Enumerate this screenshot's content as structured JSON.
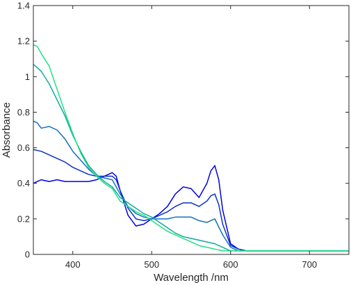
{
  "chart_data": {
    "type": "line",
    "xlabel": "Wavelength /nm",
    "ylabel": "Absorbance",
    "xlim": [
      350,
      750
    ],
    "ylim": [
      0,
      1.4
    ],
    "xticks": [
      "400",
      "500",
      "600",
      "700"
    ],
    "xtick_values": [
      400,
      500,
      600,
      700
    ],
    "yticks": [
      "0",
      "0.2",
      "0.4",
      "0.6",
      "0.8",
      "1",
      "1.2",
      "1.4"
    ],
    "ytick_values": [
      0,
      0.2,
      0.4,
      0.6,
      0.8,
      1.0,
      1.2,
      1.4
    ],
    "grid": false,
    "legend": false,
    "series": [
      {
        "color": "#0000e0",
        "x": [
          350,
          360,
          370,
          380,
          390,
          400,
          410,
          420,
          430,
          440,
          445,
          450,
          455,
          460,
          470,
          480,
          490,
          500,
          510,
          520,
          530,
          540,
          550,
          560,
          570,
          575,
          580,
          585,
          590,
          600,
          610,
          620,
          630,
          650,
          700,
          750
        ],
        "y": [
          0.4,
          0.42,
          0.41,
          0.42,
          0.41,
          0.41,
          0.41,
          0.41,
          0.42,
          0.44,
          0.45,
          0.46,
          0.44,
          0.36,
          0.22,
          0.16,
          0.17,
          0.2,
          0.23,
          0.27,
          0.34,
          0.38,
          0.37,
          0.32,
          0.4,
          0.47,
          0.5,
          0.42,
          0.25,
          0.06,
          0.03,
          0.02,
          0.02,
          0.02,
          0.02,
          0.02
        ]
      },
      {
        "color": "#0a30c8",
        "x": [
          350,
          360,
          370,
          380,
          390,
          400,
          410,
          420,
          430,
          440,
          450,
          455,
          460,
          470,
          480,
          490,
          500,
          510,
          520,
          530,
          540,
          550,
          560,
          570,
          575,
          580,
          585,
          590,
          600,
          610,
          620,
          630,
          650,
          700,
          750
        ],
        "y": [
          0.59,
          0.58,
          0.56,
          0.54,
          0.52,
          0.49,
          0.47,
          0.45,
          0.44,
          0.44,
          0.44,
          0.42,
          0.36,
          0.26,
          0.2,
          0.19,
          0.2,
          0.22,
          0.24,
          0.27,
          0.29,
          0.29,
          0.27,
          0.3,
          0.33,
          0.34,
          0.28,
          0.17,
          0.05,
          0.03,
          0.02,
          0.02,
          0.02,
          0.02,
          0.02
        ]
      },
      {
        "color": "#1470c0",
        "x": [
          350,
          355,
          360,
          370,
          380,
          390,
          400,
          410,
          420,
          430,
          440,
          450,
          460,
          470,
          480,
          490,
          500,
          510,
          520,
          530,
          540,
          550,
          560,
          570,
          580,
          590,
          600,
          610,
          620,
          630,
          650,
          700,
          750
        ],
        "y": [
          0.75,
          0.74,
          0.71,
          0.72,
          0.7,
          0.65,
          0.58,
          0.53,
          0.48,
          0.44,
          0.43,
          0.42,
          0.34,
          0.27,
          0.23,
          0.21,
          0.2,
          0.2,
          0.2,
          0.21,
          0.21,
          0.21,
          0.19,
          0.18,
          0.2,
          0.11,
          0.04,
          0.02,
          0.02,
          0.02,
          0.02,
          0.02,
          0.02
        ]
      },
      {
        "color": "#10a8a0",
        "x": [
          350,
          360,
          370,
          380,
          390,
          400,
          410,
          420,
          430,
          440,
          450,
          460,
          470,
          480,
          490,
          500,
          510,
          520,
          530,
          540,
          550,
          560,
          570,
          580,
          590,
          600,
          610,
          620,
          630,
          650,
          700,
          750
        ],
        "y": [
          1.07,
          1.03,
          0.96,
          0.87,
          0.78,
          0.67,
          0.58,
          0.5,
          0.45,
          0.41,
          0.38,
          0.32,
          0.29,
          0.26,
          0.23,
          0.21,
          0.18,
          0.15,
          0.12,
          0.1,
          0.09,
          0.08,
          0.07,
          0.06,
          0.04,
          0.02,
          0.02,
          0.02,
          0.02,
          0.02,
          0.02,
          0.02
        ]
      },
      {
        "color": "#20e080",
        "x": [
          350,
          355,
          360,
          370,
          380,
          390,
          400,
          410,
          420,
          430,
          440,
          450,
          460,
          470,
          480,
          490,
          500,
          510,
          520,
          530,
          540,
          550,
          560,
          570,
          580,
          590,
          600,
          610,
          620,
          630,
          650,
          700,
          750
        ],
        "y": [
          1.18,
          1.17,
          1.13,
          1.06,
          0.93,
          0.8,
          0.68,
          0.57,
          0.49,
          0.44,
          0.4,
          0.37,
          0.3,
          0.27,
          0.24,
          0.22,
          0.19,
          0.16,
          0.13,
          0.11,
          0.09,
          0.07,
          0.05,
          0.04,
          0.03,
          0.02,
          0.02,
          0.02,
          0.02,
          0.02,
          0.02,
          0.02,
          0.02
        ]
      }
    ]
  }
}
